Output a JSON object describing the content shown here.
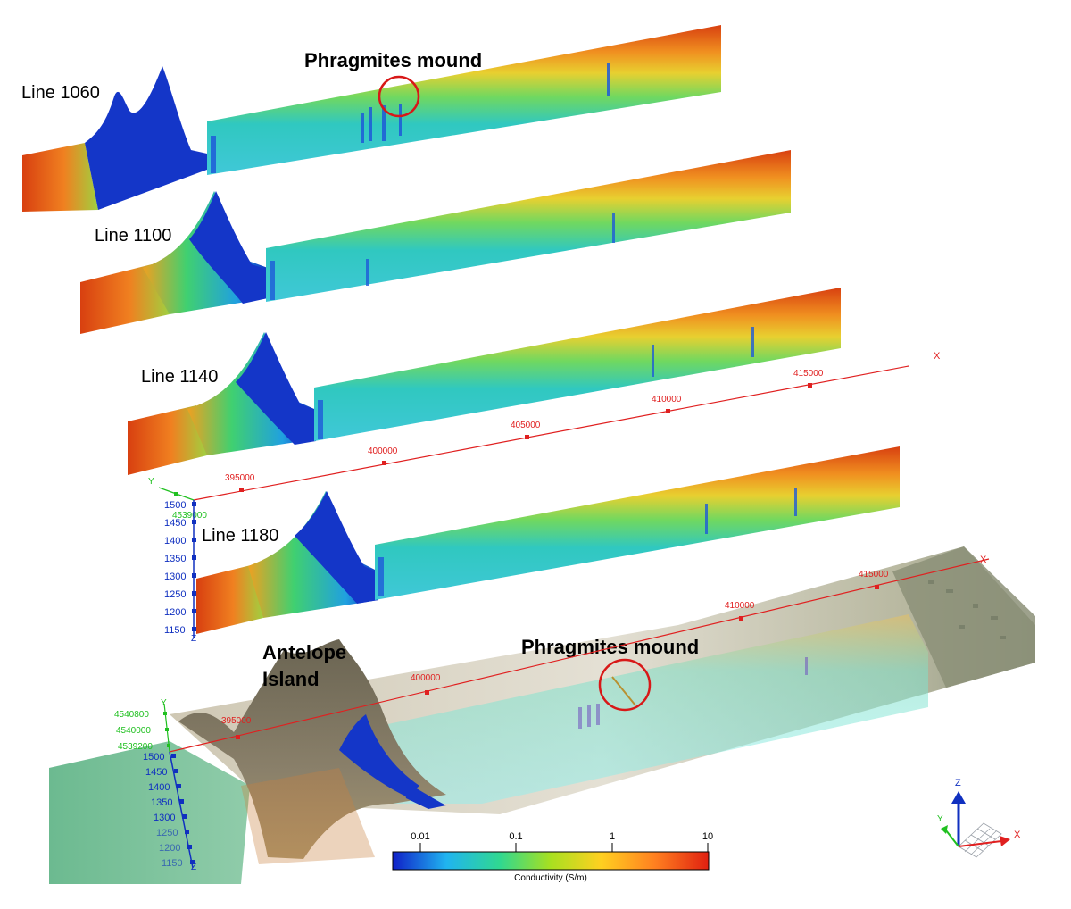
{
  "profiles": [
    {
      "label": "Line 1060"
    },
    {
      "label": "Line 1100"
    },
    {
      "label": "Line 1140"
    },
    {
      "label": "Line 1180"
    }
  ],
  "annotations": {
    "top_mound": "Phragmites mound",
    "bottom_mound": "Phragmites mound",
    "island_line1": "Antelope",
    "island_line2": "Island"
  },
  "axes_upper": {
    "x_label": "X",
    "x_ticks": [
      "395000",
      "400000",
      "405000",
      "410000",
      "415000"
    ],
    "y_label": "Y",
    "y_tick": "4539000",
    "z_label": "Z",
    "z_ticks": [
      "1500",
      "1450",
      "1400",
      "1350",
      "1300",
      "1250",
      "1200",
      "1150"
    ]
  },
  "axes_lower": {
    "x_label": "X",
    "x_ticks": [
      "395000",
      "400000",
      "410000",
      "415000"
    ],
    "y_label": "Y",
    "y_ticks": [
      "4540800",
      "4540000",
      "4539200"
    ],
    "z_label": "Z",
    "z_ticks": [
      "1500",
      "1450",
      "1400",
      "1350",
      "1300",
      "1250",
      "1200",
      "1150"
    ]
  },
  "colorbar": {
    "ticks": [
      "0.01",
      "0.1",
      "1",
      "10"
    ],
    "title": "Conductivity (S/m)",
    "colors": [
      "#1020c8",
      "#20b4f0",
      "#30d890",
      "#a8e020",
      "#ffd020",
      "#ff8020",
      "#e02010"
    ]
  },
  "triad": {
    "x": "X",
    "y": "Y",
    "z": "Z"
  },
  "colors": {
    "high": "#d84010",
    "mid": "#40d0a0",
    "low": "#1030c0",
    "axis_x": "#e02020",
    "axis_y": "#20c020",
    "axis_z": "#1030c0",
    "circle": "#d81818"
  }
}
